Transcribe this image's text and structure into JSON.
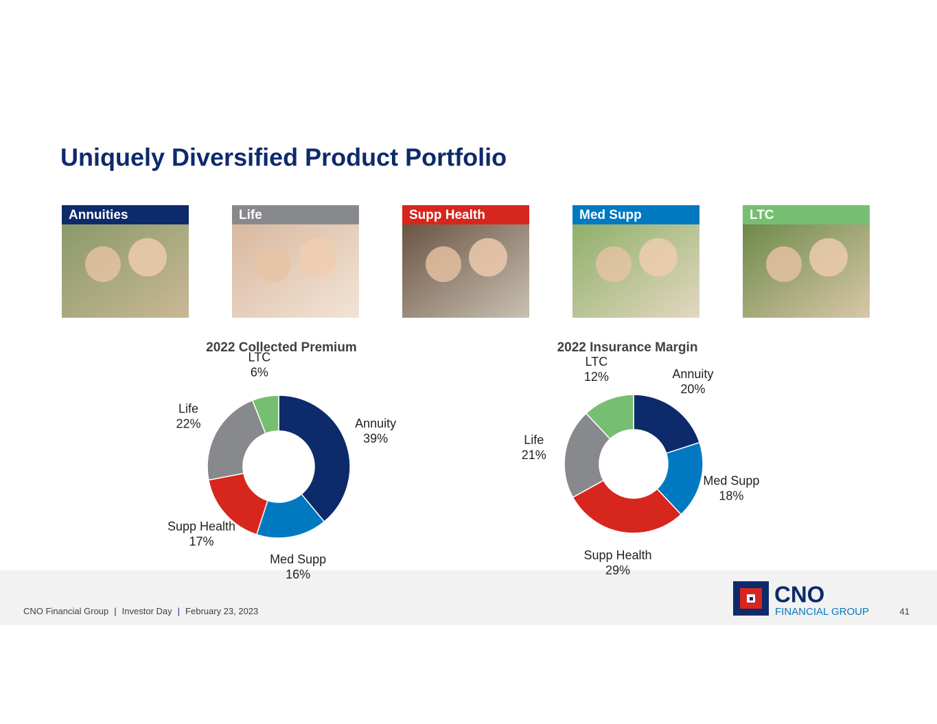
{
  "header": {
    "title": "Uniquely Diversified Product Portfolio"
  },
  "products": [
    {
      "label": "Annuities",
      "color": "#0d2a6b"
    },
    {
      "label": "Life",
      "color": "#88898c"
    },
    {
      "label": "Supp Health",
      "color": "#d7261e"
    },
    {
      "label": "Med Supp",
      "color": "#0079c1"
    },
    {
      "label": "LTC",
      "color": "#76bf72"
    }
  ],
  "chart_data": [
    {
      "type": "pie",
      "donut": true,
      "title": "2022 Collected Premium",
      "categories": [
        "Annuity",
        "Med Supp",
        "Supp Health",
        "Life",
        "LTC"
      ],
      "values": [
        39,
        16,
        17,
        22,
        6
      ],
      "value_labels": [
        "39%",
        "16%",
        "17%",
        "22%",
        "6%"
      ],
      "colors": [
        "#0d2a6b",
        "#0079c1",
        "#d7261e",
        "#88898c",
        "#76bf72"
      ]
    },
    {
      "type": "pie",
      "donut": true,
      "title": "2022 Insurance Margin",
      "categories": [
        "Annuity",
        "Med Supp",
        "Supp Health",
        "Life",
        "LTC"
      ],
      "values": [
        20,
        18,
        29,
        21,
        12
      ],
      "value_labels": [
        "20%",
        "18%",
        "29%",
        "21%",
        "12%"
      ],
      "colors": [
        "#0d2a6b",
        "#0079c1",
        "#d7261e",
        "#88898c",
        "#76bf72"
      ]
    }
  ],
  "footer": {
    "parts": [
      "CNO Financial Group",
      "Investor Day",
      "February 23, 2023"
    ],
    "separator": "|",
    "logo_name": "CNO",
    "logo_sub": "FINANCIAL GROUP",
    "page": "41"
  }
}
